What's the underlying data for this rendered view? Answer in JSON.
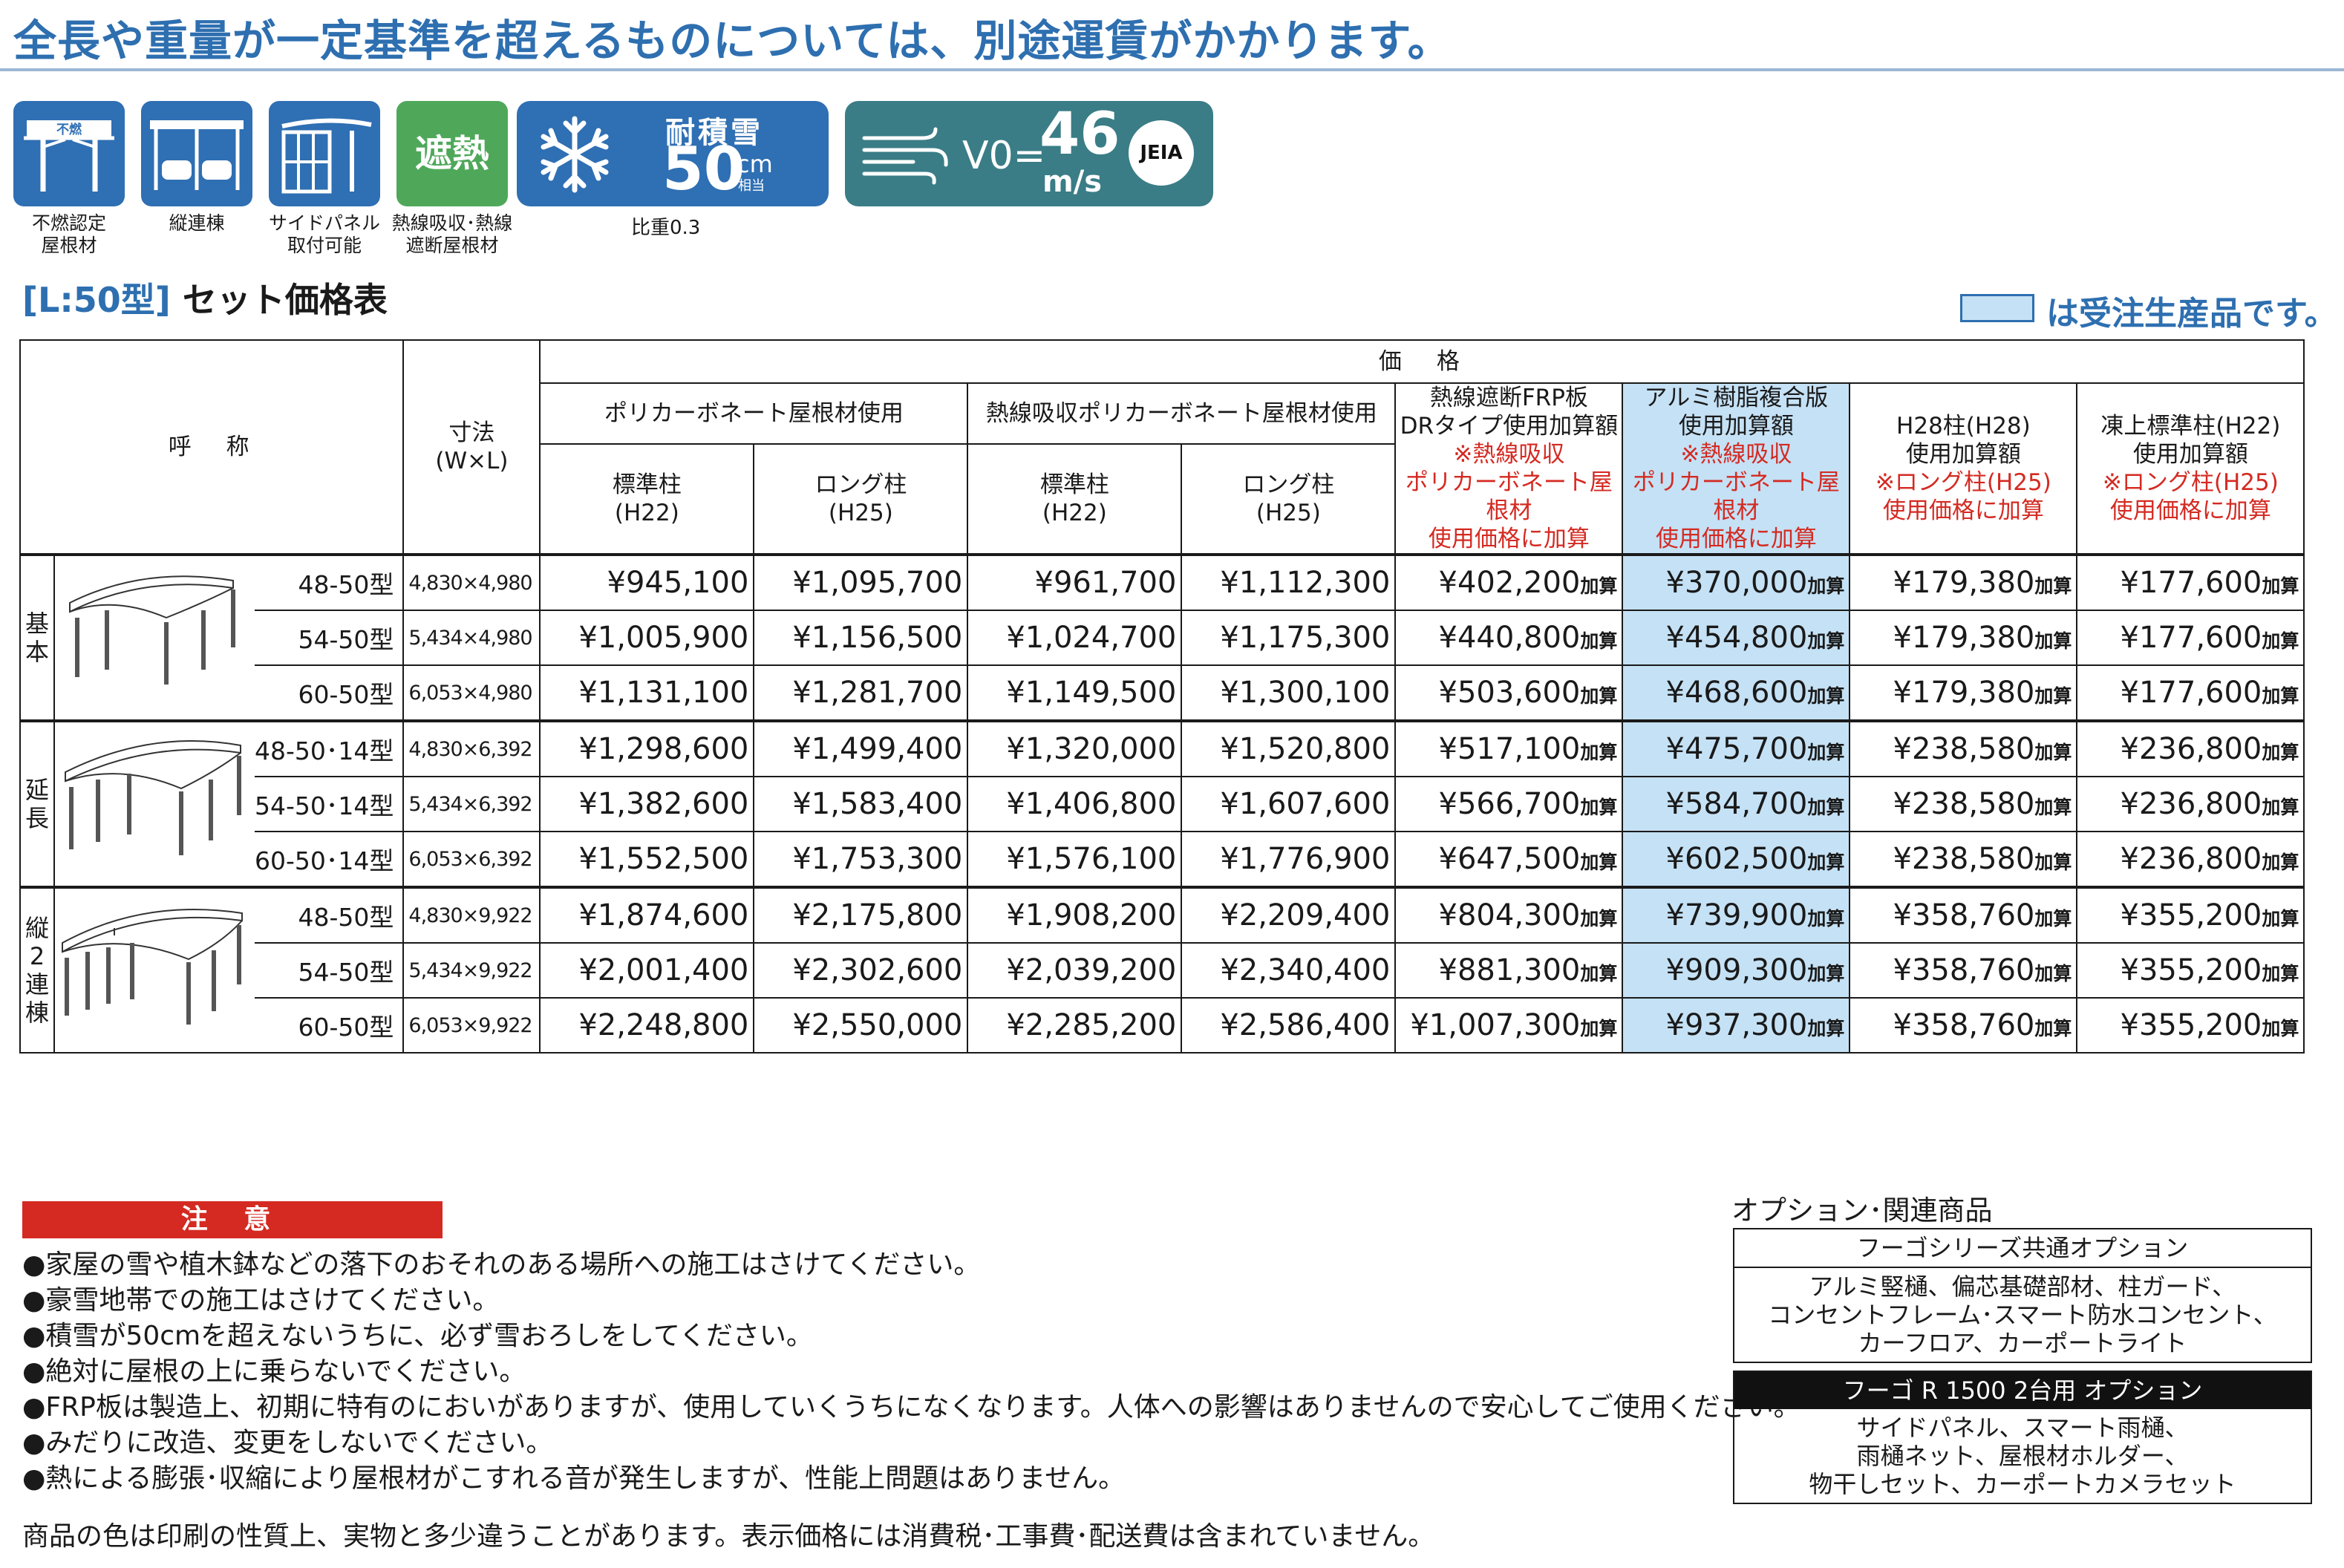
{
  "headline": "全長や重量が一定基準を超えるものについては、別途運賃がかかります。",
  "features": [
    {
      "icon": "fireproof-roof-icon",
      "badge": "不燃",
      "caption": "不燃認定\n屋根材"
    },
    {
      "icon": "tandem-carport-icon",
      "caption": "縦連棟"
    },
    {
      "icon": "side-panel-icon",
      "caption": "サイドパネル\n取付可能"
    },
    {
      "icon": "heat-shield-icon",
      "badge": "遮熱",
      "caption": "熱線吸収･熱線\n遮断屋根材"
    }
  ],
  "snow": {
    "label": "耐積雪",
    "value": "50",
    "unit": "cm",
    "unit_sub": "相当",
    "caption": "比重0.3"
  },
  "wind": {
    "v0": "V0=",
    "value": "46",
    "unit": "m/s",
    "badge": "JEIA"
  },
  "section": {
    "bracket_open": "[",
    "model": "L:50型",
    "bracket_close": "]",
    "title": "セット価格表"
  },
  "legend_text": "は受注生産品です。",
  "table": {
    "headers": {
      "name": "呼　称",
      "size": "寸法\n(W×L)",
      "price": "価　格",
      "poly": "ポリカーボネート屋根材使用",
      "heat_poly": "熱線吸収ポリカーボネート屋根材使用",
      "std": "標準柱\n(H22)",
      "long": "ロング柱\n(H25)",
      "frp_title": "熱線遮断FRP板\nDRタイプ使用加算額",
      "frp_note": "※熱線吸収\nポリカーボネート屋根材\n使用価格に加算",
      "alu_title": "アルミ樹脂複合版\n使用加算額",
      "alu_note": "※熱線吸収\nポリカーボネート屋根材\n使用価格に加算",
      "h28_title": "H28柱(H28)\n使用加算額",
      "h28_note": "※ロング柱(H25)\n使用価格に加算",
      "frost_title": "凍上標準柱(H22)\n使用加算額",
      "frost_note": "※ロング柱(H25)\n使用価格に加算"
    },
    "add_suffix": "加算",
    "groups": [
      {
        "label": "基\n本",
        "rows": [
          {
            "name": "48-50型",
            "size": "4,830×4,980",
            "prices": [
              "¥945,100",
              "¥1,095,700",
              "¥961,700",
              "¥1,112,300",
              "¥402,200",
              "¥370,000",
              "¥179,380",
              "¥177,600"
            ]
          },
          {
            "name": "54-50型",
            "size": "5,434×4,980",
            "prices": [
              "¥1,005,900",
              "¥1,156,500",
              "¥1,024,700",
              "¥1,175,300",
              "¥440,800",
              "¥454,800",
              "¥179,380",
              "¥177,600"
            ]
          },
          {
            "name": "60-50型",
            "size": "6,053×4,980",
            "prices": [
              "¥1,131,100",
              "¥1,281,700",
              "¥1,149,500",
              "¥1,300,100",
              "¥503,600",
              "¥468,600",
              "¥179,380",
              "¥177,600"
            ]
          }
        ]
      },
      {
        "label": "延\n長",
        "rows": [
          {
            "name": "48-50･14型",
            "size": "4,830×6,392",
            "prices": [
              "¥1,298,600",
              "¥1,499,400",
              "¥1,320,000",
              "¥1,520,800",
              "¥517,100",
              "¥475,700",
              "¥238,580",
              "¥236,800"
            ]
          },
          {
            "name": "54-50･14型",
            "size": "5,434×6,392",
            "prices": [
              "¥1,382,600",
              "¥1,583,400",
              "¥1,406,800",
              "¥1,607,600",
              "¥566,700",
              "¥584,700",
              "¥238,580",
              "¥236,800"
            ]
          },
          {
            "name": "60-50･14型",
            "size": "6,053×6,392",
            "prices": [
              "¥1,552,500",
              "¥1,753,300",
              "¥1,576,100",
              "¥1,776,900",
              "¥647,500",
              "¥602,500",
              "¥238,580",
              "¥236,800"
            ]
          }
        ]
      },
      {
        "label": "縦\n2\n連\n棟",
        "rows": [
          {
            "name": "48-50型",
            "size": "4,830×9,922",
            "prices": [
              "¥1,874,600",
              "¥2,175,800",
              "¥1,908,200",
              "¥2,209,400",
              "¥804,300",
              "¥739,900",
              "¥358,760",
              "¥355,200"
            ]
          },
          {
            "name": "54-50型",
            "size": "5,434×9,922",
            "prices": [
              "¥2,001,400",
              "¥2,302,600",
              "¥2,039,200",
              "¥2,340,400",
              "¥881,300",
              "¥909,300",
              "¥358,760",
              "¥355,200"
            ]
          },
          {
            "name": "60-50型",
            "size": "6,053×9,922",
            "prices": [
              "¥2,248,800",
              "¥2,550,000",
              "¥2,285,200",
              "¥2,586,400",
              "¥1,007,300",
              "¥937,300",
              "¥358,760",
              "¥355,200"
            ]
          }
        ]
      }
    ]
  },
  "caution": {
    "title": "注 意",
    "notes": [
      "●家屋の雪や植木鉢などの落下のおそれのある場所への施工はさけてください。",
      "●豪雪地帯での施工はさけてください。",
      "●積雪が50cmを超えないうちに、必ず雪おろしをしてください。",
      "●絶対に屋根の上に乗らないでください。",
      "●FRP板は製造上、初期に特有のにおいがありますが、使用していくうちになくなります。人体への影響はありませんので安心してご使用ください。",
      "●みだりに改造、変更をしないでください。",
      "●熱による膨張･収縮により屋根材がこすれる音が発生しますが、性能上問題はありません。"
    ]
  },
  "footer": "商品の色は印刷の性質上、実物と多少違うことがあります。表示価格には消費税･工事費･配送費は含まれていません。",
  "options": {
    "title": "オプション･関連商品",
    "common_head": "フーゴシリーズ共通オプション",
    "common_body": "アルミ竪樋、偏芯基礎部材、柱ガード、\nコンセントフレーム･スマート防水コンセント、\nカーフロア、カーポートライト",
    "r1500_head": "フーゴ R 1500 2台用 オプション",
    "r1500_body": "サイドパネル、スマート雨樋、\n雨樋ネット、屋根材ホルダー、\n物干しセット、カーポートカメラセット"
  },
  "colors": {
    "accent": "#2e6fb0",
    "made_to_order": "#c5e1f5",
    "caution": "#d42a22",
    "heat_green": "#4fa85a",
    "wind_teal": "#3a7d86"
  }
}
